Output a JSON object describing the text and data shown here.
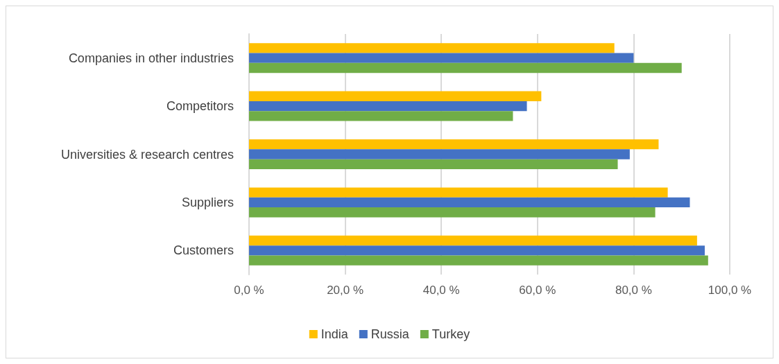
{
  "chart_data": {
    "type": "bar",
    "orientation": "horizontal",
    "categories": [
      "Companies in other industries",
      "Competitors",
      "Universities & research centres",
      "Suppliers",
      "Customers"
    ],
    "series": [
      {
        "name": "India",
        "color": "#ffc000",
        "values": [
          76.0,
          60.8,
          85.2,
          87.1,
          93.2
        ]
      },
      {
        "name": "Russia",
        "color": "#4472c4",
        "values": [
          80.0,
          57.8,
          79.2,
          91.7,
          94.8
        ]
      },
      {
        "name": "Turkey",
        "color": "#70ad47",
        "values": [
          90.0,
          54.9,
          76.7,
          84.5,
          95.5
        ]
      }
    ],
    "xlim": [
      0,
      100
    ],
    "xticks": [
      {
        "value": 0,
        "label": "0,0 %"
      },
      {
        "value": 20,
        "label": "20,0 %"
      },
      {
        "value": 40,
        "label": "40,0 %"
      },
      {
        "value": 60,
        "label": "60,0 %"
      },
      {
        "value": 80,
        "label": "80,0 %"
      },
      {
        "value": 100,
        "label": "100,0 %"
      }
    ],
    "grid": "x",
    "legend": "bottom"
  }
}
